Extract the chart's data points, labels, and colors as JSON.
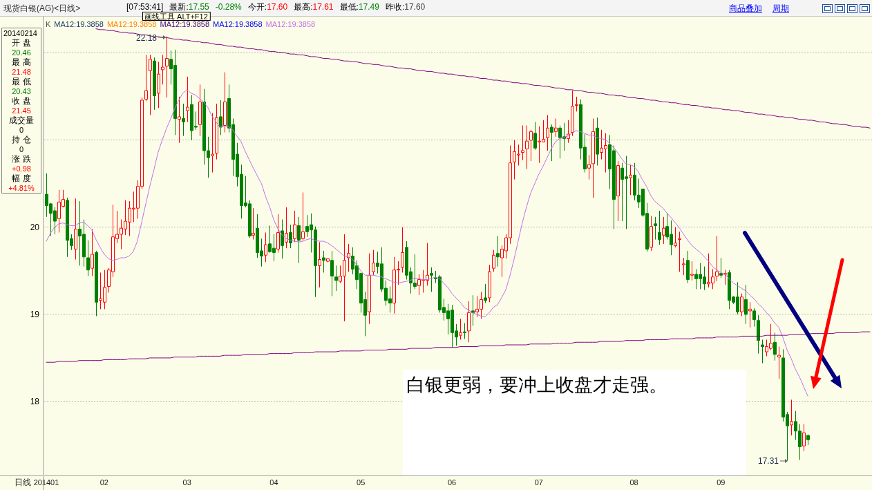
{
  "chart_data": {
    "type": "candlestick",
    "categories": [
      "201401",
      null,
      null,
      null,
      null,
      null,
      null,
      null,
      null,
      null,
      null,
      null,
      null,
      null,
      "02",
      null,
      null,
      null,
      null,
      null,
      null,
      null,
      null,
      null,
      null,
      null,
      null,
      null,
      null,
      null,
      null,
      null,
      null,
      null,
      "03",
      null,
      null,
      null,
      null,
      null,
      null,
      null,
      null,
      null,
      null,
      null,
      null,
      null,
      null,
      null,
      null,
      null,
      null,
      null,
      null,
      "04",
      null,
      null,
      null,
      null,
      null,
      null,
      null,
      null,
      null,
      null,
      null,
      null,
      null,
      null,
      null,
      null,
      null,
      null,
      null,
      null,
      "05",
      null,
      null,
      null,
      null,
      null,
      null,
      null,
      null,
      null,
      null,
      null,
      null,
      null,
      null,
      null,
      null,
      null,
      null,
      null,
      null,
      null,
      "06",
      null,
      null,
      null,
      null,
      null,
      null,
      null,
      null,
      null,
      null,
      null,
      null,
      null,
      null,
      null,
      null,
      null,
      null,
      null,
      null,
      "07",
      null,
      null,
      null,
      null,
      null,
      null,
      null,
      null,
      null,
      null,
      null,
      null,
      null,
      null,
      null,
      null,
      null,
      null,
      null,
      null,
      null,
      null,
      "08",
      null,
      null,
      null,
      null,
      null,
      null,
      null,
      null,
      null,
      null,
      null,
      null,
      null,
      null,
      null,
      null,
      null,
      null,
      null,
      null,
      "09",
      null,
      null,
      null,
      null,
      null,
      null,
      null,
      null,
      null,
      null,
      null,
      null,
      null,
      null,
      null,
      null,
      null,
      null,
      null,
      null,
      null,
      null,
      null,
      null,
      null,
      null,
      null,
      null,
      null,
      null,
      null,
      null,
      null,
      null,
      null,
      null
    ],
    "ohlc": [
      [
        20.37,
        20.61,
        20.11,
        20.24
      ],
      [
        20.26,
        20.27,
        19.89,
        20.15
      ],
      [
        20.18,
        20.22,
        19.91,
        20.06
      ],
      [
        20.09,
        20.42,
        19.93,
        20.28
      ],
      [
        20.23,
        20.42,
        20.22,
        20.31
      ],
      [
        20.3,
        20.33,
        19.65,
        19.84
      ],
      [
        19.86,
        19.91,
        19.73,
        19.78
      ],
      [
        19.74,
        20.32,
        19.62,
        19.97
      ],
      [
        19.97,
        20.29,
        19.55,
        19.89
      ],
      [
        19.91,
        20.08,
        19.54,
        19.65
      ],
      [
        19.64,
        19.84,
        19.43,
        19.5
      ],
      [
        19.52,
        19.97,
        19.43,
        19.68
      ],
      [
        19.7,
        19.72,
        18.97,
        19.13
      ],
      [
        19.15,
        19.47,
        19.05,
        19.17
      ],
      [
        19.13,
        19.5,
        19.05,
        19.3
      ],
      [
        19.31,
        19.52,
        19.24,
        19.5
      ],
      [
        19.48,
        20.25,
        19.42,
        19.88
      ],
      [
        19.86,
        20.18,
        19.81,
        19.91
      ],
      [
        19.91,
        20.08,
        19.74,
        19.98
      ],
      [
        19.97,
        20.3,
        19.9,
        20.06
      ],
      [
        20.05,
        20.29,
        19.89,
        20.21
      ],
      [
        20.2,
        20.4,
        20.05,
        20.21
      ],
      [
        20.21,
        20.53,
        20.09,
        20.46
      ],
      [
        20.46,
        21.48,
        20.43,
        21.45
      ],
      [
        21.46,
        21.97,
        21.44,
        21.56
      ],
      [
        21.79,
        21.97,
        21.28,
        21.92
      ],
      [
        21.9,
        21.94,
        21.34,
        21.5
      ],
      [
        21.53,
        21.89,
        21.36,
        21.75
      ],
      [
        21.8,
        21.97,
        21.63,
        21.83
      ],
      [
        21.84,
        22.18,
        21.48,
        21.93
      ],
      [
        21.92,
        22.02,
        21.63,
        21.81
      ],
      [
        21.85,
        22.03,
        21.05,
        21.24
      ],
      [
        21.23,
        21.49,
        20.96,
        21.26
      ],
      [
        21.24,
        21.41,
        21.04,
        21.2
      ],
      [
        21.33,
        21.72,
        21.2,
        21.37
      ],
      [
        21.4,
        21.51,
        20.99,
        21.1
      ],
      [
        21.15,
        21.32,
        21.11,
        21.14
      ],
      [
        21.17,
        21.63,
        21.04,
        21.43
      ],
      [
        21.43,
        21.58,
        20.71,
        20.87
      ],
      [
        20.87,
        21.03,
        20.56,
        20.79
      ],
      [
        20.81,
        21.3,
        20.62,
        20.83
      ],
      [
        20.84,
        21.41,
        20.77,
        21.25
      ],
      [
        21.26,
        21.45,
        21.05,
        21.14
      ],
      [
        21.16,
        21.77,
        21.08,
        21.43
      ],
      [
        21.47,
        21.63,
        21.08,
        21.13
      ],
      [
        21.17,
        21.24,
        20.58,
        20.77
      ],
      [
        20.83,
        20.96,
        20.46,
        20.57
      ],
      [
        20.6,
        20.71,
        20.09,
        20.24
      ],
      [
        20.27,
        20.58,
        20.22,
        20.24
      ],
      [
        20.26,
        20.3,
        19.87,
        19.89
      ],
      [
        19.9,
        20.21,
        19.85,
        19.92
      ],
      [
        19.98,
        20.14,
        19.64,
        19.7
      ],
      [
        19.72,
        19.86,
        19.54,
        19.66
      ],
      [
        19.67,
        19.93,
        19.59,
        19.79
      ],
      [
        19.8,
        20.01,
        19.7,
        19.71
      ],
      [
        19.75,
        19.91,
        19.6,
        19.7
      ],
      [
        19.74,
        20.14,
        19.7,
        19.93
      ],
      [
        19.95,
        20.08,
        19.63,
        19.78
      ],
      [
        19.82,
        20.22,
        19.75,
        19.92
      ],
      [
        19.93,
        20.02,
        19.75,
        19.81
      ],
      [
        19.86,
        20.18,
        19.82,
        20.02
      ],
      [
        20.01,
        20.11,
        19.58,
        19.84
      ],
      [
        19.86,
        20.39,
        19.84,
        19.94
      ],
      [
        20.0,
        20.13,
        19.88,
        19.94
      ],
      [
        20.02,
        20.15,
        19.7,
        19.96
      ],
      [
        19.96,
        20.0,
        19.19,
        19.55
      ],
      [
        19.55,
        19.82,
        19.3,
        19.62
      ],
      [
        19.64,
        19.72,
        19.47,
        19.61
      ],
      [
        19.6,
        19.63,
        19.59,
        19.63
      ],
      [
        19.61,
        19.72,
        19.2,
        19.43
      ],
      [
        19.42,
        19.55,
        19.26,
        19.38
      ],
      [
        19.37,
        19.55,
        19.35,
        19.43
      ],
      [
        19.43,
        19.91,
        18.91,
        19.61
      ],
      [
        19.64,
        19.8,
        19.48,
        19.69
      ],
      [
        19.66,
        19.76,
        19.45,
        19.51
      ],
      [
        19.55,
        19.61,
        19.28,
        19.39
      ],
      [
        19.46,
        19.47,
        19.01,
        19.12
      ],
      [
        19.16,
        19.25,
        18.74,
        18.98
      ],
      [
        19.02,
        19.69,
        18.88,
        19.44
      ],
      [
        19.48,
        19.73,
        19.44,
        19.58
      ],
      [
        19.58,
        19.71,
        19.46,
        19.54
      ],
      [
        19.57,
        19.76,
        19.25,
        19.28
      ],
      [
        19.29,
        19.38,
        19.09,
        19.15
      ],
      [
        19.17,
        19.31,
        19.01,
        19.12
      ],
      [
        19.12,
        19.65,
        19.0,
        19.5
      ],
      [
        19.5,
        19.6,
        19.33,
        19.51
      ],
      [
        19.53,
        19.99,
        19.47,
        19.7
      ],
      [
        19.76,
        19.83,
        19.39,
        19.44
      ],
      [
        19.48,
        19.53,
        19.23,
        19.35
      ],
      [
        19.35,
        19.68,
        19.28,
        19.31
      ],
      [
        19.32,
        19.45,
        19.21,
        19.39
      ],
      [
        19.38,
        19.5,
        19.24,
        19.39
      ],
      [
        19.38,
        19.81,
        19.32,
        19.44
      ],
      [
        19.46,
        19.53,
        19.25,
        19.44
      ],
      [
        19.41,
        19.49,
        19.35,
        19.4
      ],
      [
        19.42,
        19.44,
        19.01,
        19.04
      ],
      [
        19.07,
        19.17,
        18.92,
        19.01
      ],
      [
        19.03,
        19.11,
        18.76,
        18.94
      ],
      [
        19.04,
        19.1,
        18.61,
        18.78
      ],
      [
        18.8,
        18.88,
        18.63,
        18.73
      ],
      [
        18.75,
        18.94,
        18.7,
        18.78
      ],
      [
        18.79,
        18.89,
        18.71,
        18.78
      ],
      [
        18.8,
        19.14,
        18.67,
        19.01
      ],
      [
        19.03,
        19.21,
        18.86,
        19.01
      ],
      [
        19.02,
        19.2,
        18.96,
        19.05
      ],
      [
        19.05,
        19.25,
        18.94,
        19.16
      ],
      [
        19.18,
        19.34,
        19.12,
        19.15
      ],
      [
        19.18,
        19.56,
        19.13,
        19.48
      ],
      [
        19.52,
        19.73,
        19.48,
        19.67
      ],
      [
        19.69,
        19.89,
        19.54,
        19.65
      ],
      [
        19.64,
        19.78,
        19.42,
        19.74
      ],
      [
        19.72,
        19.91,
        19.63,
        19.87
      ],
      [
        19.87,
        20.93,
        19.8,
        20.73
      ],
      [
        20.74,
        20.99,
        20.54,
        20.86
      ],
      [
        20.82,
        20.94,
        20.7,
        20.83
      ],
      [
        20.85,
        21.16,
        20.76,
        20.87
      ],
      [
        20.89,
        21.16,
        20.66,
        20.98
      ],
      [
        20.99,
        21.11,
        20.75,
        21.09
      ],
      [
        21.07,
        21.2,
        20.88,
        20.9
      ],
      [
        20.97,
        21.15,
        20.73,
        20.98
      ],
      [
        20.97,
        21.22,
        20.97,
        21.0
      ],
      [
        21.02,
        21.28,
        20.87,
        21.13
      ],
      [
        21.14,
        21.17,
        20.75,
        21.08
      ],
      [
        21.09,
        21.24,
        21.03,
        21.13
      ],
      [
        21.13,
        21.16,
        20.78,
        21.02
      ],
      [
        21.03,
        21.19,
        20.87,
        21.01
      ],
      [
        21.01,
        21.22,
        20.96,
        21.06
      ],
      [
        21.08,
        21.56,
        21.04,
        21.38
      ],
      [
        21.39,
        21.49,
        21.32,
        21.4
      ],
      [
        21.4,
        21.46,
        20.77,
        20.9
      ],
      [
        20.91,
        21.06,
        20.62,
        20.66
      ],
      [
        20.67,
        20.82,
        20.54,
        20.71
      ],
      [
        20.72,
        21.24,
        20.33,
        21.09
      ],
      [
        21.13,
        21.25,
        20.7,
        20.83
      ],
      [
        20.85,
        21.11,
        20.77,
        20.9
      ],
      [
        20.89,
        21.07,
        20.62,
        20.93
      ],
      [
        20.94,
        21.05,
        20.43,
        20.66
      ],
      [
        20.87,
        20.93,
        19.97,
        20.31
      ],
      [
        20.35,
        20.75,
        20.06,
        20.7
      ],
      [
        20.67,
        20.73,
        20.06,
        20.54
      ],
      [
        20.57,
        20.81,
        19.97,
        20.55
      ],
      [
        20.56,
        20.71,
        20.36,
        20.59
      ],
      [
        20.59,
        20.73,
        20.3,
        20.36
      ],
      [
        20.36,
        20.55,
        20.21,
        20.28
      ],
      [
        20.43,
        20.43,
        20.11,
        20.13
      ],
      [
        20.15,
        20.27,
        19.71,
        19.74
      ],
      [
        19.76,
        20.12,
        19.72,
        20.0
      ],
      [
        20.03,
        20.11,
        19.85,
        20.01
      ],
      [
        19.93,
        20.18,
        19.79,
        19.85
      ],
      [
        19.9,
        20.11,
        19.8,
        19.98
      ],
      [
        20.0,
        20.15,
        19.85,
        19.88
      ],
      [
        19.91,
        20.07,
        19.67,
        19.79
      ],
      [
        19.78,
        19.99,
        19.76,
        19.81
      ],
      [
        19.85,
        19.94,
        19.48,
        19.86
      ],
      [
        19.56,
        19.64,
        19.44,
        19.57
      ],
      [
        19.61,
        19.72,
        19.35,
        19.39
      ],
      [
        19.44,
        19.6,
        19.38,
        19.45
      ],
      [
        19.45,
        19.51,
        19.28,
        19.4
      ],
      [
        19.45,
        19.58,
        19.28,
        19.4
      ],
      [
        19.42,
        19.54,
        19.27,
        19.34
      ],
      [
        19.34,
        19.69,
        19.3,
        19.36
      ],
      [
        19.35,
        19.51,
        19.28,
        19.42
      ],
      [
        19.43,
        19.89,
        19.37,
        19.48
      ],
      [
        19.46,
        19.64,
        19.41,
        19.44
      ],
      [
        19.45,
        19.5,
        19.33,
        19.46
      ],
      [
        19.47,
        19.5,
        19.05,
        19.15
      ],
      [
        19.19,
        19.2,
        19.11,
        19.13
      ],
      [
        19.19,
        19.36,
        18.99,
        19.02
      ],
      [
        19.02,
        19.23,
        18.97,
        19.19
      ],
      [
        19.16,
        19.33,
        18.88,
        18.99
      ],
      [
        19.03,
        19.13,
        18.84,
        19.05
      ],
      [
        19.03,
        19.06,
        18.85,
        18.93
      ],
      [
        18.92,
        18.98,
        18.54,
        18.69
      ],
      [
        18.64,
        18.7,
        18.43,
        18.62
      ],
      [
        18.56,
        18.7,
        18.51,
        18.62
      ],
      [
        18.6,
        18.88,
        18.58,
        18.66
      ],
      [
        18.67,
        18.78,
        18.46,
        18.53
      ],
      [
        18.5,
        18.62,
        18.25,
        18.52
      ],
      [
        18.49,
        18.59,
        17.76,
        17.81
      ],
      [
        17.84,
        17.87,
        17.31,
        17.71
      ],
      [
        17.72,
        18.01,
        17.6,
        17.76
      ],
      [
        17.76,
        17.88,
        17.55,
        17.65
      ],
      [
        17.65,
        17.73,
        17.32,
        17.47
      ],
      [
        17.48,
        17.73,
        17.42,
        17.63
      ],
      [
        17.6,
        17.61,
        17.49,
        17.55
      ],
      null,
      null,
      null,
      null,
      null,
      null,
      null,
      null,
      null,
      null,
      null,
      null,
      null,
      null,
      null
    ],
    "series": [
      {
        "type": "line",
        "name": "MA12:19.3858",
        "color": "#c070f0",
        "values": [
          19.83,
          19.92,
          19.99,
          20.03,
          20.04,
          20.02,
          20.01,
          20.01,
          20.04,
          20.05,
          20.01,
          19.96,
          19.85,
          19.76,
          19.68,
          19.63,
          19.61,
          19.62,
          19.64,
          19.64,
          19.66,
          19.71,
          19.83,
          20.04,
          20.25,
          20.46,
          20.65,
          20.85,
          20.99,
          21.12,
          21.23,
          21.35,
          21.45,
          21.53,
          21.57,
          21.53,
          21.51,
          21.47,
          21.43,
          21.37,
          21.27,
          21.2,
          21.14,
          21.15,
          21.15,
          21.11,
          21.04,
          20.98,
          20.87,
          20.77,
          20.67,
          20.58,
          20.49,
          20.34,
          20.22,
          20.07,
          19.97,
          19.9,
          19.86,
          19.84,
          19.83,
          19.82,
          19.83,
          19.85,
          19.86,
          19.84,
          19.83,
          19.83,
          19.81,
          19.78,
          19.74,
          19.7,
          19.66,
          19.65,
          19.62,
          19.56,
          19.49,
          19.44,
          19.44,
          19.44,
          19.43,
          19.42,
          19.4,
          19.38,
          19.36,
          19.35,
          19.36,
          19.37,
          19.38,
          19.41,
          19.4,
          19.39,
          19.39,
          19.4,
          19.42,
          19.4,
          19.35,
          19.3,
          19.23,
          19.18,
          19.13,
          19.07,
          19.04,
          19.01,
          18.99,
          18.97,
          18.96,
          19.01,
          19.07,
          19.1,
          19.18,
          19.27,
          19.43,
          19.62,
          19.83,
          20.04,
          20.22,
          20.38,
          20.49,
          20.6,
          20.69,
          20.79,
          20.89,
          20.97,
          21.01,
          21.02,
          21.04,
          21.07,
          21.1,
          21.09,
          21.07,
          21.05,
          21.05,
          21.02,
          21.01,
          21.0,
          20.96,
          20.91,
          20.85,
          20.78,
          20.72,
          20.71,
          20.69,
          20.63,
          20.54,
          20.46,
          20.36,
          20.29,
          20.25,
          20.21,
          20.15,
          20.1,
          20.04,
          19.98,
          19.91,
          19.84,
          19.78,
          19.74,
          19.7,
          19.65,
          19.6,
          19.54,
          19.5,
          19.47,
          19.45,
          19.4,
          19.35,
          19.32,
          19.29,
          19.26,
          19.21,
          19.17,
          19.11,
          19.07,
          19.01,
          18.96,
          18.89,
          18.84,
          18.72,
          18.58,
          18.48,
          18.36,
          18.27,
          18.16,
          18.05,
          null,
          null,
          null,
          null,
          null,
          null,
          null,
          null,
          null,
          null,
          null,
          null,
          null,
          null,
          null
        ]
      },
      {
        "type": "line",
        "color": "#800080",
        "values": [
          null,
          null,
          null,
          null,
          null,
          null,
          null,
          null,
          null,
          null,
          null,
          null,
          22.27,
          22.26,
          22.26,
          22.25,
          22.25,
          22.24,
          22.23,
          22.23,
          22.22,
          22.22,
          22.21,
          22.2,
          22.2,
          22.19,
          22.18,
          22.18,
          22.17,
          22.17,
          22.16,
          22.15,
          22.15,
          22.14,
          22.14,
          22.13,
          22.12,
          22.12,
          22.11,
          22.11,
          22.1,
          22.09,
          22.09,
          22.08,
          22.07,
          22.07,
          22.06,
          22.06,
          22.05,
          22.04,
          22.04,
          22.03,
          22.03,
          22.02,
          22.01,
          22.01,
          22.0,
          22.0,
          21.99,
          21.98,
          21.98,
          21.97,
          21.97,
          21.96,
          21.95,
          21.95,
          21.94,
          21.93,
          21.93,
          21.92,
          21.92,
          21.91,
          21.9,
          21.9,
          21.89,
          21.89,
          21.88,
          21.87,
          21.87,
          21.86,
          21.86,
          21.85,
          21.84,
          21.84,
          21.83,
          21.82,
          21.82,
          21.81,
          21.81,
          21.8,
          21.79,
          21.79,
          21.78,
          21.78,
          21.77,
          21.76,
          21.76,
          21.75,
          21.75,
          21.74,
          21.73,
          21.73,
          21.72,
          21.72,
          21.71,
          21.7,
          21.7,
          21.69,
          21.68,
          21.68,
          21.67,
          21.67,
          21.66,
          21.65,
          21.65,
          21.64,
          21.64,
          21.63,
          21.62,
          21.62,
          21.61,
          21.61,
          21.6,
          21.59,
          21.59,
          21.58,
          21.57,
          21.57,
          21.56,
          21.56,
          21.55,
          21.54,
          21.54,
          21.53,
          21.53,
          21.52,
          21.51,
          21.51,
          21.5,
          21.5,
          21.49,
          21.48,
          21.48,
          21.47,
          21.47,
          21.46,
          21.45,
          21.45,
          21.44,
          21.43,
          21.43,
          21.42,
          21.42,
          21.41,
          21.4,
          21.4,
          21.39,
          21.39,
          21.38,
          21.37,
          21.37,
          21.36,
          21.36,
          21.35,
          21.34,
          21.34,
          21.33,
          21.33,
          21.32,
          21.31,
          21.31,
          21.3,
          21.29,
          21.29,
          21.28,
          21.28,
          21.27,
          21.26,
          21.26,
          21.25,
          21.25,
          21.24,
          21.23,
          21.23,
          21.22,
          21.22,
          21.21,
          21.2,
          21.2,
          21.19,
          21.18,
          21.18,
          21.17,
          21.17,
          21.16,
          21.15,
          21.15,
          21.14,
          21.14,
          21.13
        ]
      },
      {
        "type": "line",
        "color": "#800080",
        "values": [
          18.44,
          18.44,
          18.44,
          18.45,
          18.45,
          18.45,
          18.45,
          18.45,
          18.46,
          18.46,
          18.46,
          18.46,
          18.46,
          18.46,
          18.47,
          18.47,
          18.47,
          18.47,
          18.47,
          18.47,
          18.48,
          18.48,
          18.48,
          18.48,
          18.48,
          18.49,
          18.49,
          18.49,
          18.49,
          18.49,
          18.49,
          18.5,
          18.5,
          18.5,
          18.5,
          18.5,
          18.5,
          18.51,
          18.51,
          18.51,
          18.51,
          18.51,
          18.51,
          18.52,
          18.52,
          18.52,
          18.52,
          18.52,
          18.53,
          18.53,
          18.53,
          18.53,
          18.53,
          18.53,
          18.54,
          18.54,
          18.54,
          18.54,
          18.54,
          18.54,
          18.55,
          18.55,
          18.55,
          18.55,
          18.55,
          18.56,
          18.56,
          18.56,
          18.56,
          18.56,
          18.56,
          18.57,
          18.57,
          18.57,
          18.57,
          18.57,
          18.57,
          18.58,
          18.58,
          18.58,
          18.58,
          18.58,
          18.58,
          18.59,
          18.59,
          18.59,
          18.59,
          18.59,
          18.6,
          18.6,
          18.6,
          18.6,
          18.6,
          18.6,
          18.61,
          18.61,
          18.61,
          18.61,
          18.61,
          18.61,
          18.62,
          18.62,
          18.62,
          18.62,
          18.62,
          18.63,
          18.63,
          18.63,
          18.63,
          18.63,
          18.63,
          18.64,
          18.64,
          18.64,
          18.64,
          18.64,
          18.64,
          18.65,
          18.65,
          18.65,
          18.65,
          18.65,
          18.65,
          18.66,
          18.66,
          18.66,
          18.66,
          18.66,
          18.67,
          18.67,
          18.67,
          18.67,
          18.67,
          18.67,
          18.68,
          18.68,
          18.68,
          18.68,
          18.68,
          18.68,
          18.69,
          18.69,
          18.69,
          18.69,
          18.69,
          18.7,
          18.7,
          18.7,
          18.7,
          18.7,
          18.7,
          18.71,
          18.71,
          18.71,
          18.71,
          18.71,
          18.71,
          18.72,
          18.72,
          18.72,
          18.72,
          18.72,
          18.73,
          18.73,
          18.73,
          18.73,
          18.73,
          18.73,
          18.74,
          18.74,
          18.74,
          18.74,
          18.74,
          18.74,
          18.75,
          18.75,
          18.75,
          18.75,
          18.75,
          18.75,
          18.76,
          18.76,
          18.76,
          18.76,
          18.76,
          18.77,
          18.77,
          18.77,
          18.77,
          18.77,
          18.77,
          18.78,
          18.78,
          18.78,
          18.78,
          18.78,
          18.78,
          18.79,
          18.79,
          18.79
        ]
      }
    ],
    "ylim": [
      17.14,
      22.41
    ],
    "yticks": [
      18,
      19,
      20,
      {
        "value": 21,
        "label": null
      },
      {
        "value": 22,
        "label": null
      }
    ],
    "grid": "y",
    "legend": "top left",
    "annotations": [
      "现货白银(AG)<日线>",
      "[07:53:41]",
      "最新:17.55",
      "-0.28%",
      "今开:17.60",
      "最高:17.61",
      "最低:17.49",
      "昨收:17.60",
      "画线工具 ALT+F12",
      "商品叠加",
      "周期",
      "K",
      "MA12:19.3858",
      "MA12:19.3858",
      "MA12:19.3858",
      "MA12:19.3858",
      "20140214",
      "开 盘",
      "20.46",
      "最 高",
      "21.48",
      "最 低",
      "20.43",
      "收 盘",
      "21.45",
      "成交量",
      "0",
      "持 仓",
      "0",
      "涨 跌",
      "+0.98",
      "幅 度",
      "+4.81%",
      "日线",
      "22.18",
      "17.31",
      "白银更弱，要冲上收盘才走强。"
    ]
  }
}
